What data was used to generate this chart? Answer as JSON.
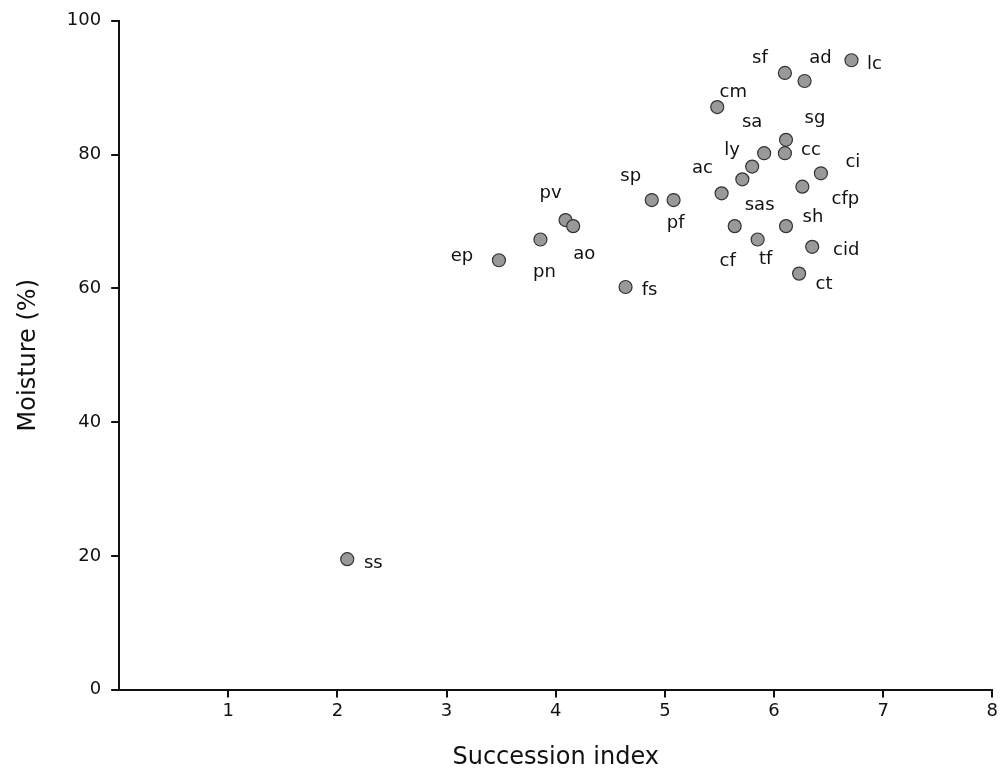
{
  "chart_data": {
    "type": "scatter",
    "xlabel": "Succession index",
    "ylabel": "Moisture (%)",
    "x": [
      6.1,
      6.28,
      6.71,
      5.48,
      6.11,
      6.1,
      5.91,
      5.8,
      5.71,
      6.43,
      6.26,
      5.52,
      4.88,
      5.08,
      4.09,
      4.16,
      3.86,
      3.48,
      5.64,
      6.11,
      5.85,
      6.35,
      6.23,
      4.64,
      2.09
    ],
    "values": [
      92.2,
      91.0,
      94.1,
      87.1,
      82.2,
      80.2,
      80.2,
      78.2,
      76.3,
      77.2,
      75.2,
      74.2,
      73.2,
      73.2,
      70.2,
      69.3,
      67.3,
      64.2,
      69.3,
      69.3,
      67.3,
      66.2,
      62.2,
      60.2,
      19.5
    ],
    "color": "#999999",
    "marker": "circle",
    "xlim": [
      0,
      8
    ],
    "xticks": [
      1,
      2,
      3,
      4,
      5,
      6,
      7,
      8
    ],
    "ylim": [
      0,
      100
    ],
    "yticks": [
      0,
      20,
      40,
      60,
      80,
      100
    ],
    "grid": false,
    "value_labels": [
      "sf",
      "ad",
      "lc",
      "cm",
      "sg",
      "cc",
      "sa",
      "ly",
      "ac",
      "ci",
      "cfp",
      "sas",
      "sp",
      "pf",
      "pv",
      "ao",
      "pn",
      "ep",
      "cf",
      "sh",
      "tf",
      "cid",
      "ct",
      "fs",
      "ss"
    ]
  }
}
